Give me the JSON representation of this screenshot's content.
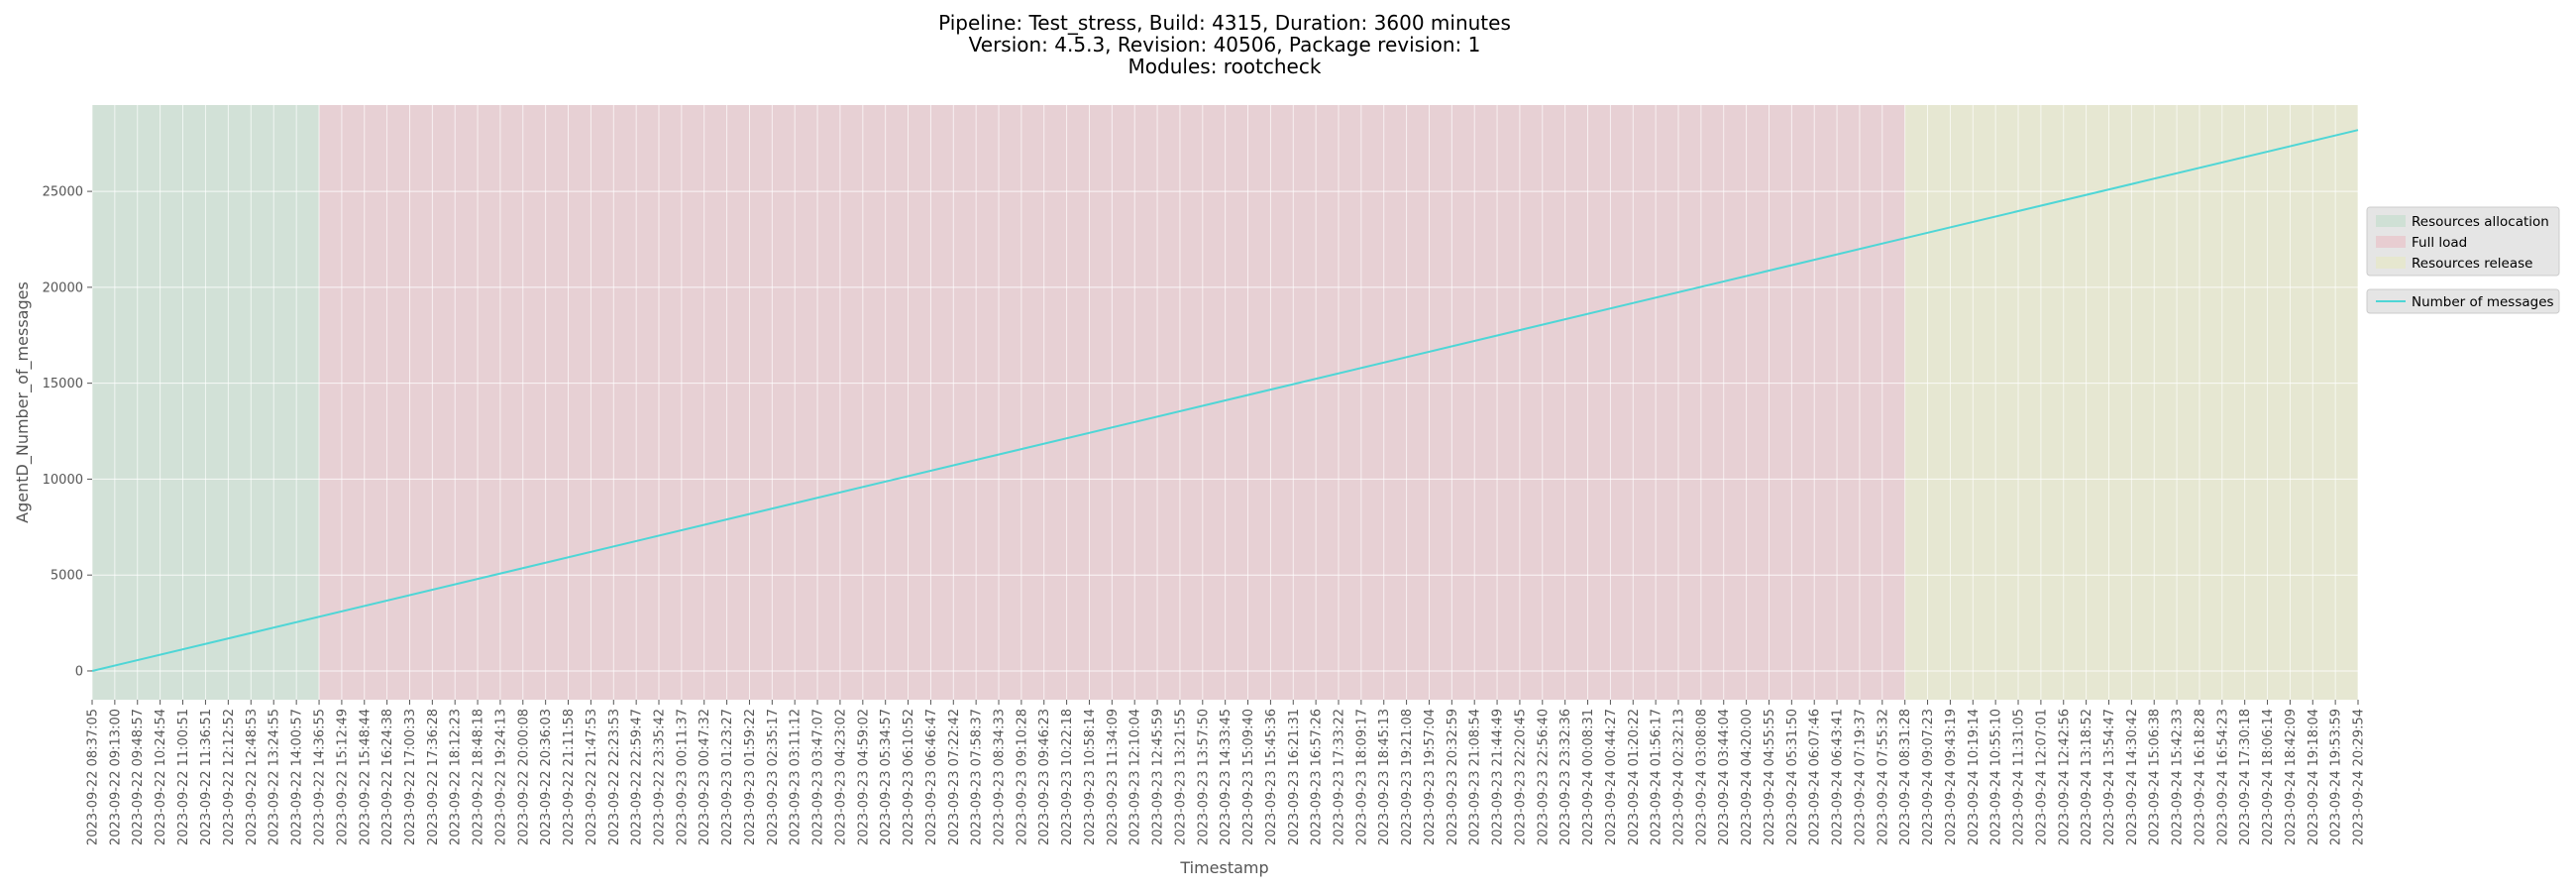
{
  "chart_data": {
    "type": "line",
    "title_lines": [
      "Pipeline: Test_stress, Build: 4315, Duration: 3600 minutes",
      "Version: 4.5.3, Revision: 40506, Package revision: 1",
      "Modules: rootcheck"
    ],
    "xlabel": "Timestamp",
    "ylabel": "AgentD_Number_of_messages",
    "ylim": [
      -1500,
      29500
    ],
    "yticks": [
      0,
      5000,
      10000,
      15000,
      20000,
      25000
    ],
    "grid": true,
    "legend_placement": "right",
    "x_ticks": [
      "2023-09-22 08:37:05",
      "2023-09-22 09:13:00",
      "2023-09-22 09:48:57",
      "2023-09-22 10:24:54",
      "2023-09-22 11:00:51",
      "2023-09-22 11:36:51",
      "2023-09-22 12:12:52",
      "2023-09-22 12:48:53",
      "2023-09-22 13:24:55",
      "2023-09-22 14:00:57",
      "2023-09-22 14:36:55",
      "2023-09-22 15:12:49",
      "2023-09-22 15:48:44",
      "2023-09-22 16:24:38",
      "2023-09-22 17:00:33",
      "2023-09-22 17:36:28",
      "2023-09-22 18:12:23",
      "2023-09-22 18:48:18",
      "2023-09-22 19:24:13",
      "2023-09-22 20:00:08",
      "2023-09-22 20:36:03",
      "2023-09-22 21:11:58",
      "2023-09-22 21:47:53",
      "2023-09-22 22:23:53",
      "2023-09-22 22:59:47",
      "2023-09-22 23:35:42",
      "2023-09-23 00:11:37",
      "2023-09-23 00:47:32",
      "2023-09-23 01:23:27",
      "2023-09-23 01:59:22",
      "2023-09-23 02:35:17",
      "2023-09-23 03:11:12",
      "2023-09-23 03:47:07",
      "2023-09-23 04:23:02",
      "2023-09-23 04:59:02",
      "2023-09-23 05:34:57",
      "2023-09-23 06:10:52",
      "2023-09-23 06:46:47",
      "2023-09-23 07:22:42",
      "2023-09-23 07:58:37",
      "2023-09-23 08:34:33",
      "2023-09-23 09:10:28",
      "2023-09-23 09:46:23",
      "2023-09-23 10:22:18",
      "2023-09-23 10:58:14",
      "2023-09-23 11:34:09",
      "2023-09-23 12:10:04",
      "2023-09-23 12:45:59",
      "2023-09-23 13:21:55",
      "2023-09-23 13:57:50",
      "2023-09-23 14:33:45",
      "2023-09-23 15:09:40",
      "2023-09-23 15:45:36",
      "2023-09-23 16:21:31",
      "2023-09-23 16:57:26",
      "2023-09-23 17:33:22",
      "2023-09-23 18:09:17",
      "2023-09-23 18:45:13",
      "2023-09-23 19:21:08",
      "2023-09-23 19:57:04",
      "2023-09-23 20:32:59",
      "2023-09-23 21:08:54",
      "2023-09-23 21:44:49",
      "2023-09-23 22:20:45",
      "2023-09-23 22:56:40",
      "2023-09-23 23:32:36",
      "2023-09-24 00:08:31",
      "2023-09-24 00:44:27",
      "2023-09-24 01:20:22",
      "2023-09-24 01:56:17",
      "2023-09-24 02:32:13",
      "2023-09-24 03:08:08",
      "2023-09-24 03:44:04",
      "2023-09-24 04:20:00",
      "2023-09-24 04:55:55",
      "2023-09-24 05:31:50",
      "2023-09-24 06:07:46",
      "2023-09-24 06:43:41",
      "2023-09-24 07:19:37",
      "2023-09-24 07:55:32",
      "2023-09-24 08:31:28",
      "2023-09-24 09:07:23",
      "2023-09-24 09:43:19",
      "2023-09-24 10:19:14",
      "2023-09-24 10:55:10",
      "2023-09-24 11:31:05",
      "2023-09-24 12:07:01",
      "2023-09-24 12:42:56",
      "2023-09-24 13:18:52",
      "2023-09-24 13:54:47",
      "2023-09-24 14:30:42",
      "2023-09-24 15:06:38",
      "2023-09-24 15:42:33",
      "2023-09-24 16:18:28",
      "2023-09-24 16:54:23",
      "2023-09-24 17:30:18",
      "2023-09-24 18:06:14",
      "2023-09-24 18:42:09",
      "2023-09-24 19:18:04",
      "2023-09-24 19:53:59",
      "2023-09-24 20:29:54"
    ],
    "phases": [
      {
        "name": "Resources allocation",
        "start": "2023-09-22 08:37:05",
        "end": "2023-09-22 14:36:55",
        "color": "#cfe0d5"
      },
      {
        "name": "Full load",
        "start": "2023-09-22 14:36:55",
        "end": "2023-09-24 08:31:28",
        "color": "#e8cdd1"
      },
      {
        "name": "Resources release",
        "start": "2023-09-24 08:31:28",
        "end": "2023-09-24 20:29:54",
        "color": "#e6e7cf"
      }
    ],
    "series": [
      {
        "name": "Number of messages",
        "color": "#4ed6d6",
        "x": [
          "2023-09-22 08:37:05",
          "2023-09-24 20:29:54"
        ],
        "y": [
          0,
          28200
        ]
      }
    ]
  }
}
